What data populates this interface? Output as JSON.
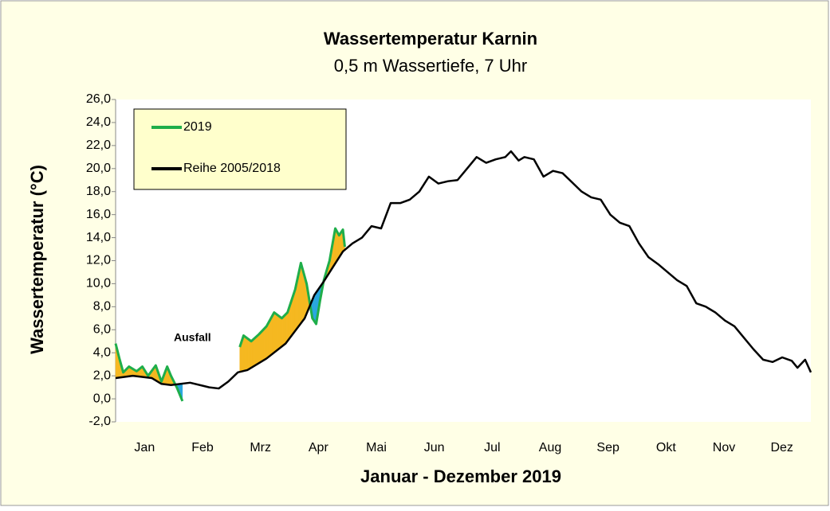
{
  "chart_data": {
    "type": "line",
    "title": "Wassertemperatur Karnin",
    "subtitle": "0,5 m Wassertiefe, 7 Uhr",
    "x_label": "Januar - Dezember 2019",
    "y_label": "Wassertemperatur (°C)",
    "annotation": "Ausfall",
    "categories": [
      "Jan",
      "Feb",
      "Mrz",
      "Apr",
      "Mai",
      "Jun",
      "Jul",
      "Aug",
      "Sep",
      "Okt",
      "Nov",
      "Dez"
    ],
    "xlim": [
      1,
      365
    ],
    "ylim": [
      -2,
      26
    ],
    "yticks": [
      {
        "value": -2,
        "label": "-2,0"
      },
      {
        "value": 0,
        "label": "0,0"
      },
      {
        "value": 2,
        "label": "2,0"
      },
      {
        "value": 4,
        "label": "4,0"
      },
      {
        "value": 6,
        "label": "6,0"
      },
      {
        "value": 8,
        "label": "8,0"
      },
      {
        "value": 10,
        "label": "10,0"
      },
      {
        "value": 12,
        "label": "12,0"
      },
      {
        "value": 14,
        "label": "14,0"
      },
      {
        "value": 16,
        "label": "16,0"
      },
      {
        "value": 18,
        "label": "18,0"
      },
      {
        "value": 20,
        "label": "20,0"
      },
      {
        "value": 22,
        "label": "22,0"
      },
      {
        "value": 24,
        "label": "24,0"
      },
      {
        "value": 26,
        "label": "26,0"
      }
    ],
    "legend": "top-left",
    "above_color": "#f5b820",
    "below_color": "#2aa7df",
    "series": [
      {
        "name": "2019",
        "color": "#1fae4a",
        "x": [
          1,
          3,
          5,
          8,
          12,
          15,
          18,
          22,
          25,
          28,
          30,
          33,
          36,
          50,
          66,
          68,
          72,
          76,
          80,
          84,
          88,
          91,
          95,
          98,
          101,
          104,
          106,
          108,
          110,
          113,
          116,
          118,
          120,
          121
        ],
        "values": [
          4.8,
          3.5,
          2.3,
          2.8,
          2.4,
          2.8,
          2.0,
          2.9,
          1.5,
          2.8,
          2.0,
          1.0,
          -0.2,
          null,
          4.5,
          5.5,
          5.0,
          5.6,
          6.3,
          7.5,
          7.0,
          7.5,
          9.5,
          11.8,
          10.0,
          7.0,
          6.5,
          8.5,
          10.3,
          12.0,
          14.8,
          14.2,
          14.7,
          13.2
        ]
      },
      {
        "name": "Reihe 2005/2018",
        "color": "#000000",
        "x": [
          1,
          10,
          20,
          25,
          30,
          40,
          50,
          55,
          60,
          65,
          70,
          80,
          90,
          100,
          105,
          110,
          115,
          120,
          125,
          130,
          135,
          140,
          145,
          150,
          155,
          160,
          165,
          170,
          175,
          180,
          185,
          190,
          195,
          200,
          205,
          208,
          212,
          215,
          220,
          225,
          230,
          235,
          240,
          245,
          250,
          255,
          260,
          265,
          270,
          275,
          280,
          285,
          290,
          295,
          300,
          305,
          310,
          315,
          320,
          325,
          330,
          335,
          340,
          345,
          350,
          355,
          358,
          362,
          365
        ],
        "values": [
          1.8,
          2.0,
          1.8,
          1.3,
          1.2,
          1.4,
          1.0,
          0.9,
          1.5,
          2.3,
          2.5,
          3.5,
          4.8,
          7.0,
          9.0,
          10.2,
          11.5,
          12.8,
          13.5,
          14.0,
          15.0,
          14.8,
          17.0,
          17.0,
          17.3,
          18.0,
          19.3,
          18.7,
          18.9,
          19.0,
          20.0,
          21.0,
          20.5,
          20.8,
          21.0,
          21.5,
          20.7,
          21.0,
          20.8,
          19.3,
          19.8,
          19.6,
          18.8,
          18.0,
          17.5,
          17.3,
          16.0,
          15.3,
          15.0,
          13.5,
          12.3,
          11.7,
          11.0,
          10.3,
          9.8,
          8.3,
          8.0,
          7.5,
          6.8,
          6.3,
          5.3,
          4.3,
          3.4,
          3.2,
          3.6,
          3.3,
          2.7,
          3.4,
          2.3
        ]
      }
    ]
  }
}
